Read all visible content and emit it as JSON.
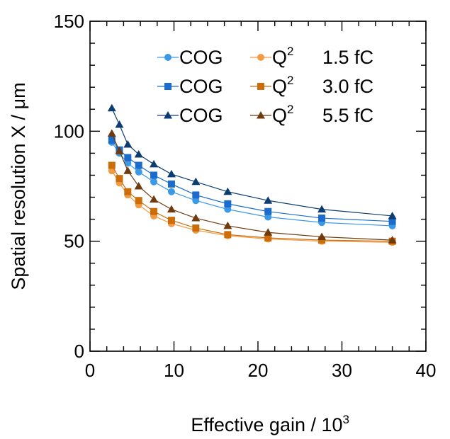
{
  "chart_data": {
    "type": "line",
    "title": "",
    "xlabel": "Effective gain / 10",
    "xlabel_exp": "3",
    "ylabel": "Spatial resolution X / μm",
    "xlim": [
      0,
      40
    ],
    "ylim": [
      0,
      150
    ],
    "x_ticks": [
      "0",
      "10",
      "20",
      "30",
      "40"
    ],
    "y_ticks": [
      "0",
      "50",
      "100",
      "150"
    ],
    "grid": false,
    "legend_position": "top-right",
    "x": [
      2.6,
      3.5,
      4.5,
      5.8,
      7.6,
      9.7,
      12.6,
      16.4,
      21.2,
      27.6,
      36.0
    ],
    "series": [
      {
        "name": "COG 1.5 fC",
        "method": "COG",
        "charge": "1.5 fC",
        "marker": "circle",
        "color": "#3b99e6",
        "values": [
          95.0,
          90.0,
          85.5,
          81.5,
          77.0,
          72.5,
          68.5,
          64.5,
          61.0,
          58.5,
          57.0
        ]
      },
      {
        "name": "COG 3.0 fC",
        "method": "COG",
        "charge": "3.0 fC",
        "marker": "square",
        "color": "#1b6ccc",
        "values": [
          96.0,
          91.5,
          88.0,
          84.5,
          80.0,
          76.0,
          71.0,
          67.0,
          63.5,
          60.5,
          59.0
        ]
      },
      {
        "name": "COG 5.5 fC",
        "method": "COG",
        "charge": "5.5 fC",
        "marker": "triangle",
        "color": "#0d3d70",
        "values": [
          110.5,
          103.0,
          94.0,
          89.5,
          85.0,
          80.5,
          77.0,
          72.5,
          68.5,
          64.5,
          61.5
        ]
      },
      {
        "name": "Q2 1.5 fC",
        "method": "Q",
        "method_exp": "2",
        "charge": "1.5 fC",
        "marker": "circle",
        "color": "#f29b45",
        "values": [
          82.0,
          76.5,
          71.0,
          66.5,
          61.5,
          58.0,
          55.0,
          52.5,
          51.0,
          50.0,
          49.5
        ]
      },
      {
        "name": "Q2 3.0 fC",
        "method": "Q",
        "method_exp": "2",
        "charge": "3.0 fC",
        "marker": "square",
        "color": "#cc6d0a",
        "values": [
          84.5,
          78.5,
          72.5,
          68.5,
          63.5,
          59.5,
          56.0,
          53.0,
          51.5,
          50.5,
          50.0
        ]
      },
      {
        "name": "Q2 5.5 fC",
        "method": "Q",
        "method_exp": "2",
        "charge": "5.5 fC",
        "marker": "triangle",
        "color": "#6e3a0e",
        "values": [
          99.0,
          91.0,
          82.0,
          75.0,
          69.0,
          64.5,
          60.5,
          57.0,
          54.0,
          52.0,
          50.5
        ]
      }
    ]
  }
}
